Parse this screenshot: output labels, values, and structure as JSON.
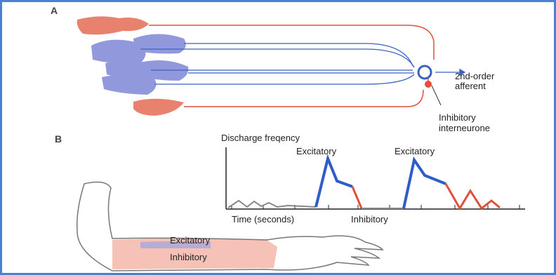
{
  "panel_a": {
    "label": "A",
    "afferent_label": [
      "2nd-order",
      "afferent"
    ],
    "interneurone_label": [
      "Inhibitory",
      "interneurone"
    ]
  },
  "panel_b": {
    "label": "B",
    "y_axis_title": "Discharge freqency",
    "peak_labels": [
      "Excitatory",
      "Excitatory"
    ],
    "x_axis_title": "Time (seconds)",
    "trough_label": "Inhibitory",
    "arm_labels": [
      "Excitatory",
      "Inhibitory"
    ]
  }
}
